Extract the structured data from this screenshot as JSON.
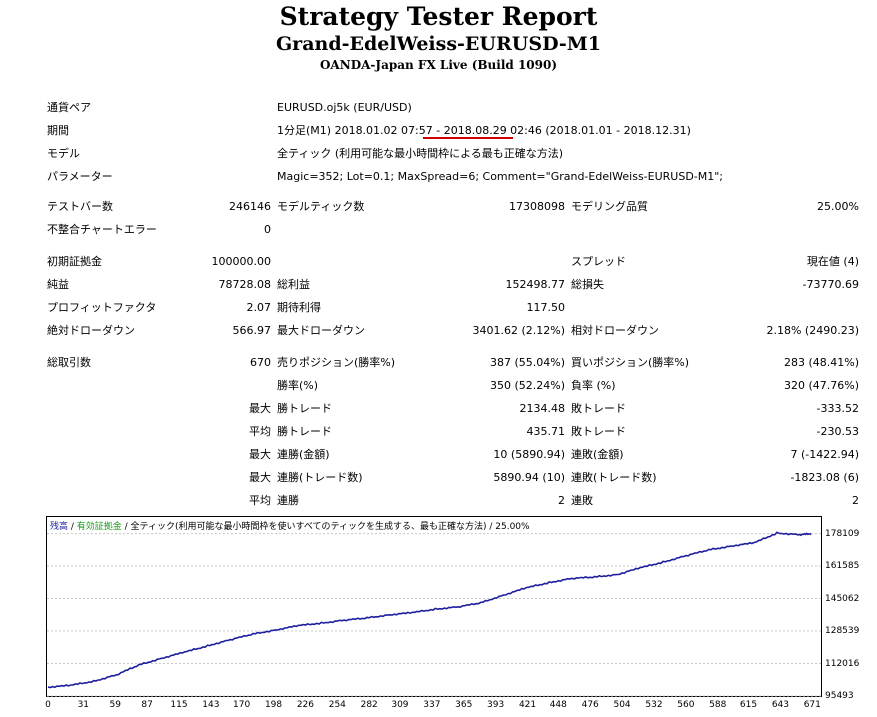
{
  "header": {
    "title": "Strategy Tester Report",
    "subtitle": "Grand-EdelWeiss-EURUSD-M1",
    "broker": "OANDA-Japan FX Live (Build 1090)"
  },
  "info": {
    "symbol_label": "通貨ペア",
    "symbol": "EURUSD.oj5k (EUR/USD)",
    "period_label": "期間",
    "period": "1分足(M1) 2018.01.02 07:57 - 2018.08.29 02:46 (2018.01.01 - 2018.12.31)",
    "model_label": "モデル",
    "model": "全ティック (利用可能な最小時間枠による最も正確な方法)",
    "params_label": "パラメーター",
    "params": "Magic=352; Lot=0.1; MaxSpread=6; Comment=\"Grand-EdelWeiss-EURUSD-M1\";"
  },
  "stats": {
    "bars_label": "テストバー数",
    "bars": "246146",
    "ticks_label": "モデルティック数",
    "ticks": "17308098",
    "quality_label": "モデリング品質",
    "quality": "25.00%",
    "mismatch_label": "不整合チャートエラー",
    "mismatch": "0",
    "deposit_label": "初期証拠金",
    "deposit": "100000.00",
    "spread_label": "スプレッド",
    "spread": "現在値 (4)",
    "net_label": "純益",
    "net": "78728.08",
    "gross_profit_label": "総利益",
    "gross_profit": "152498.77",
    "gross_loss_label": "総損失",
    "gross_loss": "-73770.69",
    "pf_label": "プロフィットファクタ",
    "pf": "2.07",
    "expected_label": "期待利得",
    "expected": "117.50",
    "abs_dd_label": "絶対ドローダウン",
    "abs_dd": "566.97",
    "max_dd_label": "最大ドローダウン",
    "max_dd": "3401.62 (2.12%)",
    "rel_dd_label": "相対ドローダウン",
    "rel_dd": "2.18% (2490.23)",
    "total_label": "総取引数",
    "total": "670",
    "short_label": "売りポジション(勝率%)",
    "short": "387 (55.04%)",
    "long_label": "買いポジション(勝率%)",
    "long": "283 (48.41%)",
    "win_label": "勝率(%)",
    "win": "350 (52.24%)",
    "loss_label": "負率 (%)",
    "loss": "320 (47.76%)",
    "max_word": "最大",
    "avg_word": "平均",
    "largest_win_label": "勝トレード",
    "largest_win": "2134.48",
    "largest_loss_label": "敗トレード",
    "largest_loss": "-333.52",
    "avg_win_label": "勝トレード",
    "avg_win": "435.71",
    "avg_loss_label": "敗トレード",
    "avg_loss": "-230.53",
    "cons_win_money_label": "連勝(金額)",
    "cons_win_money": "10 (5890.94)",
    "cons_loss_money_label": "連敗(金額)",
    "cons_loss_money": "7 (-1422.94)",
    "cons_win_count_label": "連勝(トレード数)",
    "cons_win_count": "5890.94 (10)",
    "cons_loss_count_label": "連敗(トレード数)",
    "cons_loss_count": "-1823.08 (6)",
    "avg_cons_win_label": "連勝",
    "avg_cons_win": "2",
    "avg_cons_loss_label": "連敗",
    "avg_cons_loss": "2"
  },
  "chart_caption": {
    "balance": "残高",
    "sep": " / ",
    "equity": "有効証拠金",
    "rest": " / 全ティック(利用可能な最小時間枠を使いすべてのティックを生成する、最も正確な方法) / 25.00%"
  },
  "chart_data": {
    "type": "line",
    "yticks": [
      "178109",
      "161585",
      "145062",
      "128539",
      "112016",
      "95493"
    ],
    "xticks": [
      "0",
      "31",
      "59",
      "87",
      "115",
      "143",
      "170",
      "198",
      "226",
      "254",
      "282",
      "309",
      "337",
      "365",
      "393",
      "421",
      "448",
      "476",
      "504",
      "532",
      "560",
      "588",
      "615",
      "643",
      "671"
    ],
    "ylim": [
      95493,
      184000
    ],
    "xlim": [
      0,
      676
    ],
    "line_color": "#1e1e9e",
    "series": [
      {
        "x": [
          0,
          20,
          40,
          60,
          80,
          100,
          120,
          140,
          160,
          180,
          200,
          220,
          240,
          260,
          280,
          300,
          320,
          340,
          360,
          380,
          400,
          420,
          440,
          460,
          480,
          500,
          520,
          540,
          560,
          580,
          600,
          620,
          640,
          660,
          670
        ],
        "values": [
          100000,
          100900,
          103000,
          106200,
          111300,
          114700,
          117800,
          121000,
          124100,
          127000,
          129100,
          131300,
          132600,
          134000,
          135200,
          136800,
          137900,
          139700,
          140800,
          142900,
          146800,
          150500,
          153200,
          155300,
          156000,
          157300,
          160700,
          163600,
          166800,
          169800,
          171800,
          173400,
          178400,
          177500,
          178100
        ]
      }
    ]
  }
}
